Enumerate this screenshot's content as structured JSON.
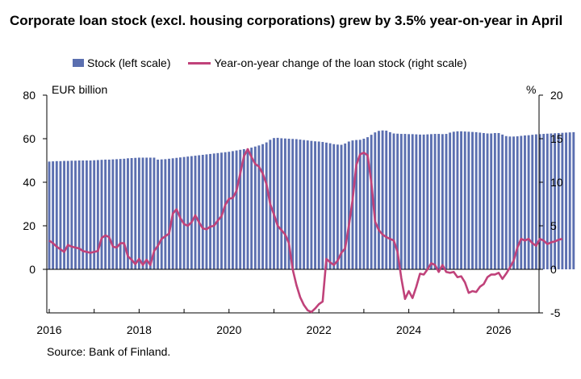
{
  "chart_data": {
    "type": "bar+line",
    "title": "Corporate loan stock (excl. housing corporations) grew by 3.5% year-on-year in April",
    "legend": {
      "stock": "Stock (left scale)",
      "change": "Year-on-year change of the loan stock (right scale)"
    },
    "left_unit": "EUR billion",
    "right_unit": "%",
    "source": "Source: Bank of Finland.",
    "left_ylim": [
      0,
      80
    ],
    "right_ylim": [
      -5,
      20
    ],
    "left_ticks": [
      "80",
      "60",
      "40",
      "20",
      "0"
    ],
    "right_ticks": [
      "20",
      "15",
      "10",
      "5",
      "0",
      "-5"
    ],
    "x_ticks": [
      "2016",
      "2018",
      "2020",
      "2022",
      "2024",
      "2026"
    ],
    "x_start": 2016.0,
    "x_step_years": 0.08333,
    "colors": {
      "bar": "#5b6fb0",
      "line": "#c0427a",
      "axis": "#000000"
    },
    "series": [
      {
        "name": "Stock (left scale)",
        "axis": "left",
        "values": [
          49.5,
          49.6,
          49.7,
          49.7,
          49.8,
          49.8,
          49.9,
          49.9,
          50.0,
          50.0,
          50.0,
          50.0,
          50.1,
          50.2,
          50.3,
          50.4,
          50.4,
          50.5,
          50.6,
          50.7,
          50.8,
          51.0,
          51.1,
          51.2,
          51.3,
          51.3,
          51.3,
          51.3,
          51.3,
          50.4,
          50.5,
          50.6,
          50.8,
          51.0,
          51.2,
          51.4,
          51.6,
          51.8,
          52.0,
          52.2,
          52.4,
          52.6,
          52.8,
          53.0,
          53.2,
          53.4,
          53.6,
          53.8,
          54.0,
          54.3,
          54.6,
          54.9,
          55.2,
          55.5,
          55.9,
          56.4,
          56.9,
          57.5,
          58.3,
          59.5,
          60.3,
          60.4,
          60.2,
          60.1,
          60.0,
          59.9,
          59.8,
          59.6,
          59.4,
          59.2,
          59.0,
          58.8,
          58.7,
          58.5,
          58.2,
          57.9,
          57.5,
          57.3,
          57.2,
          57.8,
          58.7,
          59.2,
          59.4,
          59.5,
          60.0,
          60.7,
          61.8,
          62.9,
          63.6,
          63.8,
          63.7,
          63.0,
          62.4,
          62.3,
          62.2,
          62.2,
          62.1,
          62.1,
          62.0,
          61.9,
          61.9,
          62.0,
          62.1,
          62.2,
          62.2,
          62.1,
          62.2,
          62.8,
          63.2,
          63.4,
          63.4,
          63.3,
          63.2,
          63.1,
          63.0,
          62.8,
          62.6,
          62.4,
          62.4,
          62.6,
          62.6,
          61.9,
          61.2,
          61.0,
          61.0,
          61.1,
          61.3,
          61.5,
          61.6,
          61.8,
          62.0,
          62.1,
          62.2,
          62.3,
          62.4,
          62.5,
          62.6,
          62.7,
          62.8,
          62.9,
          63.0
        ]
      },
      {
        "name": "Year-on-year change of the loan stock (right scale)",
        "axis": "right",
        "values": [
          3.3,
          3.0,
          2.6,
          2.3,
          2.0,
          2.8,
          2.6,
          2.5,
          2.4,
          2.1,
          2.0,
          1.9,
          2.0,
          2.1,
          3.6,
          3.9,
          3.7,
          2.6,
          2.5,
          3.0,
          3.0,
          1.5,
          1.1,
          0.6,
          1.2,
          0.5,
          1.1,
          0.5,
          2.1,
          2.7,
          3.5,
          3.8,
          4.1,
          6.4,
          6.9,
          5.9,
          5.2,
          5.0,
          5.4,
          6.2,
          5.4,
          4.7,
          4.6,
          4.9,
          5.0,
          5.6,
          6.1,
          7.4,
          8.1,
          8.2,
          9.0,
          11.0,
          13.0,
          13.8,
          12.9,
          12.1,
          11.8,
          11.0,
          9.8,
          7.5,
          6.3,
          5.0,
          4.5,
          4.0,
          3.0,
          0.0,
          -1.8,
          -3.2,
          -4.1,
          -4.7,
          -4.9,
          -4.5,
          -4.0,
          -3.7,
          1.2,
          0.8,
          0.5,
          1.0,
          1.9,
          2.4,
          5.0,
          8.0,
          12.0,
          13.2,
          13.4,
          13.1,
          10.0,
          5.5,
          4.5,
          4.0,
          3.7,
          3.5,
          3.3,
          2.0,
          -1.0,
          -3.4,
          -2.5,
          -3.3,
          -2.0,
          -0.5,
          -0.6,
          0.0,
          0.7,
          0.5,
          -0.3,
          0.5,
          -0.3,
          -0.4,
          -0.3,
          -0.9,
          -0.8,
          -1.5,
          -2.7,
          -2.5,
          -2.6,
          -2.0,
          -1.7,
          -0.9,
          -0.6,
          -0.6,
          -0.4,
          -1.1,
          -0.5,
          0.2,
          1.0,
          2.5,
          3.5,
          3.3,
          3.5,
          3.0,
          2.7,
          3.5,
          3.3,
          2.9,
          3.1,
          3.2,
          3.4,
          3.5
        ]
      }
    ]
  }
}
